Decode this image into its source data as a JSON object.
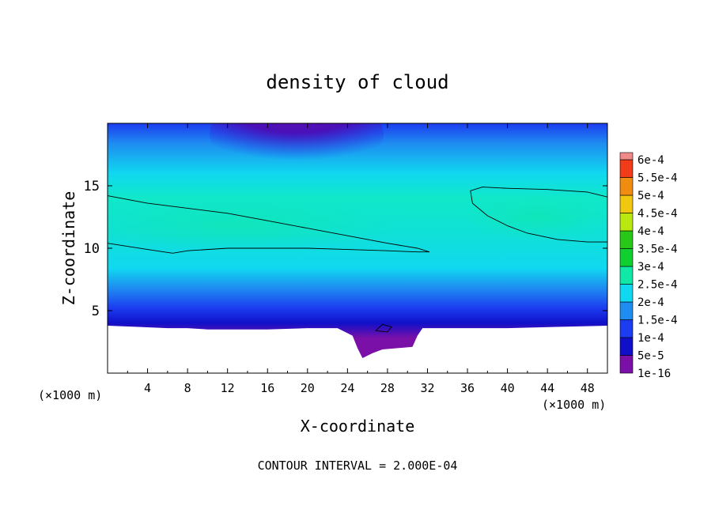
{
  "chart_data": {
    "type": "heatmap",
    "title": "density of cloud",
    "xlabel": "X-coordinate",
    "ylabel": "Z-coordinate",
    "x_unit": "(×1000 m)",
    "y_unit": "(×1000 m)",
    "xlim": [
      0,
      50
    ],
    "ylim": [
      0,
      20
    ],
    "x_ticks": [
      "4",
      "8",
      "12",
      "16",
      "20",
      "24",
      "28",
      "32",
      "36",
      "40",
      "44",
      "48"
    ],
    "x_tick_values": [
      4,
      8,
      12,
      16,
      20,
      24,
      28,
      32,
      36,
      40,
      44,
      48
    ],
    "y_ticks": [
      "5",
      "10",
      "15"
    ],
    "y_tick_values": [
      5,
      10,
      15
    ],
    "footer": "CONTOUR INTERVAL = 2.000E-04",
    "colorbar": {
      "levels": [
        {
          "label": "1e-16",
          "color": "#7a10a8"
        },
        {
          "label": "5e-5",
          "color": "#1010c8"
        },
        {
          "label": "1e-4",
          "color": "#1c3cf0"
        },
        {
          "label": "1.5e-4",
          "color": "#1e8cf0"
        },
        {
          "label": "2e-4",
          "color": "#10d8f0"
        },
        {
          "label": "2.5e-4",
          "color": "#10e8a8"
        },
        {
          "label": "3e-4",
          "color": "#10d030"
        },
        {
          "label": "3.5e-4",
          "color": "#28c818"
        },
        {
          "label": "4e-4",
          "color": "#b8e810"
        },
        {
          "label": "4.5e-4",
          "color": "#f0c810"
        },
        {
          "label": "5e-4",
          "color": "#f08c10"
        },
        {
          "label": "5.5e-4",
          "color": "#f03c18"
        },
        {
          "label": "6e-4",
          "color": "#f08a8a"
        }
      ]
    },
    "contour_lines": [
      {
        "level": "2e-4",
        "points": [
          [
            0,
            14.2
          ],
          [
            4,
            13.6
          ],
          [
            8,
            13.2
          ],
          [
            12,
            12.8
          ],
          [
            16,
            12.2
          ],
          [
            20,
            11.6
          ],
          [
            24,
            11.0
          ],
          [
            28,
            10.4
          ],
          [
            31,
            10.0
          ],
          [
            32.2,
            9.7
          ]
        ]
      },
      {
        "level": "2e-4",
        "points": [
          [
            0,
            10.4
          ],
          [
            4,
            9.9
          ],
          [
            6.5,
            9.6
          ],
          [
            8,
            9.8
          ],
          [
            12,
            10.0
          ],
          [
            16,
            10.0
          ],
          [
            20,
            10.0
          ],
          [
            24,
            9.9
          ],
          [
            28,
            9.8
          ],
          [
            31,
            9.7
          ],
          [
            32.2,
            9.7
          ]
        ]
      },
      {
        "level": "2e-4",
        "points": [
          [
            50,
            14.1
          ],
          [
            48,
            14.5
          ],
          [
            44,
            14.7
          ],
          [
            40,
            14.8
          ],
          [
            37.5,
            14.9
          ],
          [
            36.3,
            14.6
          ],
          [
            36.5,
            13.6
          ],
          [
            38,
            12.6
          ],
          [
            40,
            11.8
          ],
          [
            42,
            11.2
          ],
          [
            45,
            10.7
          ],
          [
            48,
            10.5
          ],
          [
            50,
            10.5
          ]
        ]
      },
      {
        "level": "2e-4",
        "points": [
          [
            26.8,
            3.4
          ],
          [
            27.5,
            3.9
          ],
          [
            28.4,
            3.7
          ],
          [
            28,
            3.3
          ],
          [
            26.8,
            3.4
          ]
        ]
      }
    ],
    "terrain_boundary": [
      [
        0,
        3.8
      ],
      [
        3,
        3.7
      ],
      [
        6,
        3.6
      ],
      [
        8,
        3.6
      ],
      [
        10,
        3.5
      ],
      [
        12,
        3.5
      ],
      [
        16,
        3.5
      ],
      [
        20,
        3.6
      ],
      [
        23,
        3.6
      ],
      [
        24.5,
        3.0
      ],
      [
        25,
        2.0
      ],
      [
        25.5,
        1.2
      ],
      [
        26.5,
        1.6
      ],
      [
        27.5,
        1.9
      ],
      [
        29,
        2.0
      ],
      [
        30.5,
        2.1
      ],
      [
        31,
        3.0
      ],
      [
        31.5,
        3.6
      ],
      [
        35,
        3.6
      ],
      [
        40,
        3.6
      ],
      [
        45,
        3.7
      ],
      [
        50,
        3.8
      ]
    ]
  }
}
